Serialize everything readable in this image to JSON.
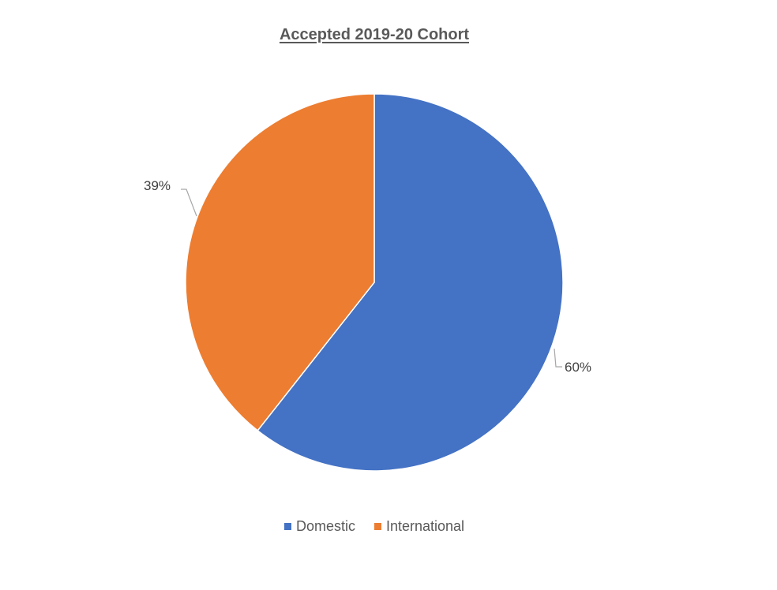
{
  "chart_data": {
    "type": "pie",
    "title": "Accepted 2019-20 Cohort",
    "categories": [
      "Domestic",
      "International"
    ],
    "values": [
      60,
      39
    ],
    "value_labels": [
      "60%",
      "39%"
    ],
    "colors": [
      "#4472C4",
      "#ED7D31"
    ],
    "legend_position": "bottom",
    "start_angle_deg": 0,
    "direction": "clockwise"
  },
  "legend": {
    "items": [
      {
        "label": "Domestic",
        "color": "#4472C4"
      },
      {
        "label": "International",
        "color": "#ED7D31"
      }
    ]
  }
}
